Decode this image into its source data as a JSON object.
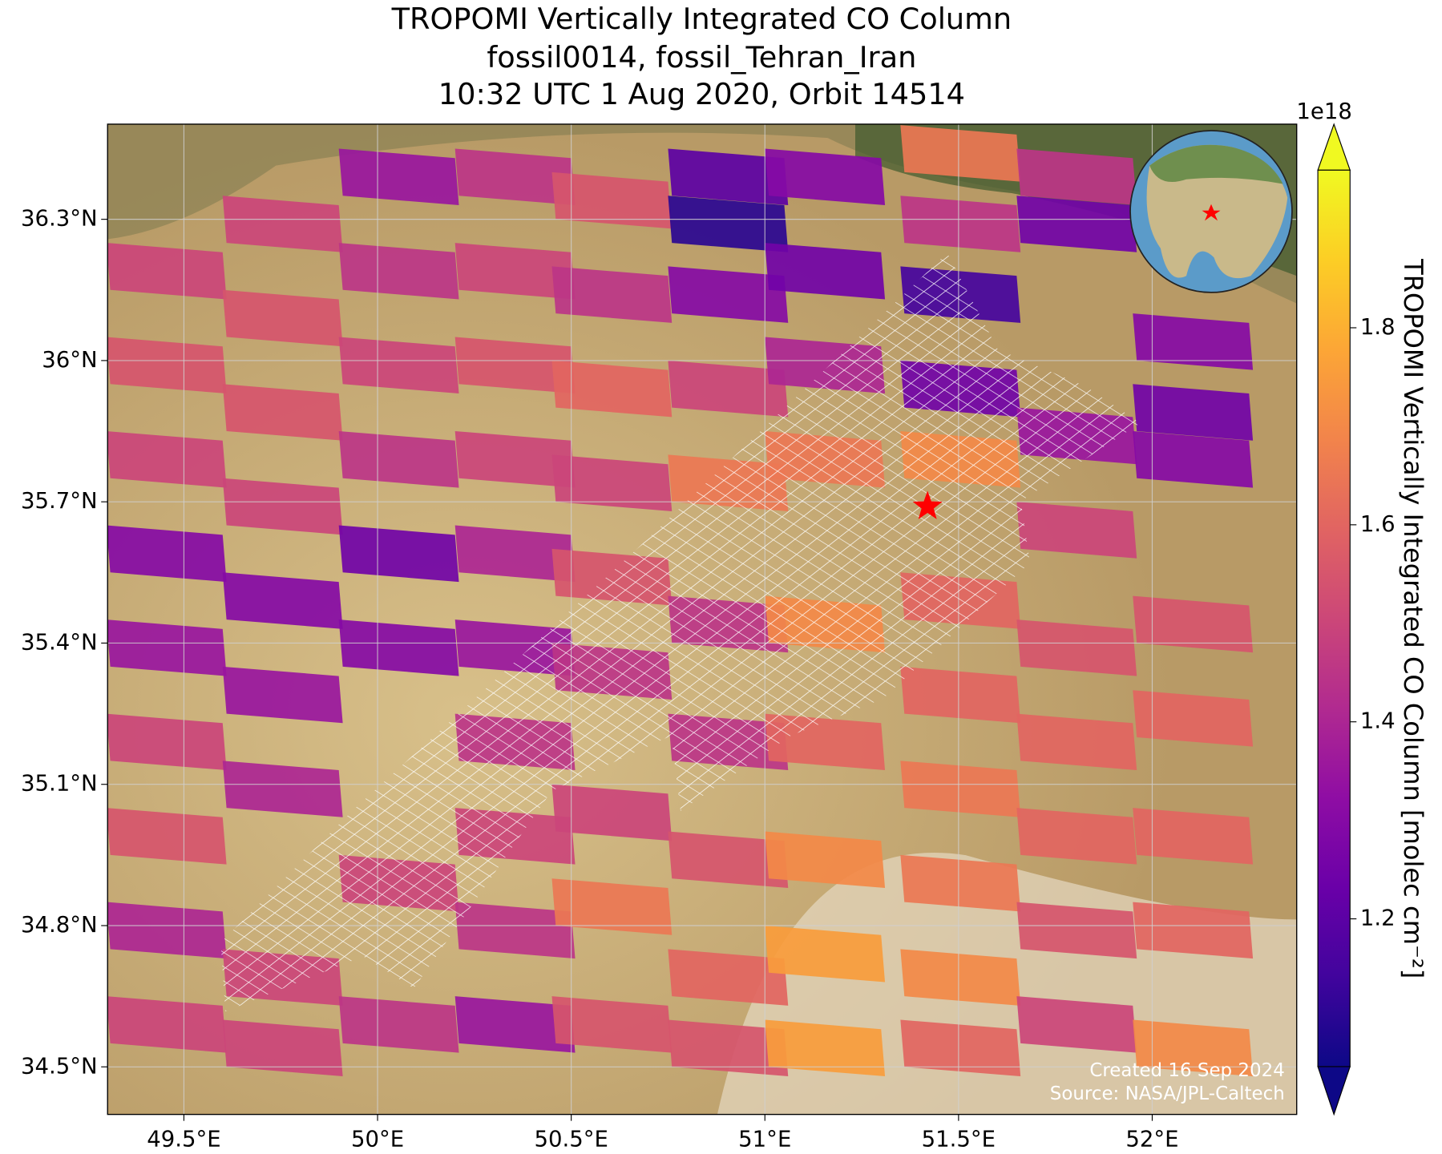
{
  "chart_data": {
    "type": "map",
    "title": [
      "TROPOMI Vertically Integrated CO Column",
      "fossil0014, fossil_Tehran_Iran",
      "10:32 UTC 1 Aug 2020, Orbit 14514"
    ],
    "xlim": [
      49.303,
      52.373
    ],
    "ylim": [
      34.399,
      36.502
    ],
    "xticks": [
      {
        "value": 49.5,
        "label": "49.5°E"
      },
      {
        "value": 50,
        "label": "50°E"
      },
      {
        "value": 50.5,
        "label": "50.5°E"
      },
      {
        "value": 51,
        "label": "51°E"
      },
      {
        "value": 51.5,
        "label": "51.5°E"
      },
      {
        "value": 52,
        "label": "52°E"
      }
    ],
    "yticks": [
      {
        "value": 34.5,
        "label": "34.5°N"
      },
      {
        "value": 34.8,
        "label": "34.8°N"
      },
      {
        "value": 35.1,
        "label": "35.1°N"
      },
      {
        "value": 35.4,
        "label": "35.4°N"
      },
      {
        "value": 35.7,
        "label": "35.7°N"
      },
      {
        "value": 36,
        "label": "36°N"
      },
      {
        "value": 36.3,
        "label": "36.3°N"
      }
    ],
    "grid": true,
    "colormap": "plasma",
    "colorbar": {
      "label": "TROPOMI Vertically Integrated CO Column [molec cm⁻²]",
      "offset_label": "1e18",
      "clim": [
        1.05,
        1.96
      ],
      "ticks": [
        1.2,
        1.4,
        1.6,
        1.8
      ]
    },
    "pixels": [
      [
        49.45,
        36.2,
        1.5
      ],
      [
        49.45,
        36.0,
        1.55
      ],
      [
        49.45,
        35.8,
        1.5
      ],
      [
        49.45,
        35.6,
        1.3
      ],
      [
        49.45,
        35.4,
        1.35
      ],
      [
        49.45,
        35.2,
        1.5
      ],
      [
        49.45,
        35.0,
        1.55
      ],
      [
        49.45,
        34.8,
        1.4
      ],
      [
        49.45,
        34.6,
        1.5
      ],
      [
        49.75,
        36.3,
        1.5
      ],
      [
        49.75,
        36.1,
        1.55
      ],
      [
        49.75,
        35.9,
        1.55
      ],
      [
        49.75,
        35.7,
        1.5
      ],
      [
        49.75,
        35.5,
        1.3
      ],
      [
        49.75,
        35.3,
        1.35
      ],
      [
        49.75,
        35.1,
        1.4
      ],
      [
        49.75,
        34.7,
        1.5
      ],
      [
        49.75,
        34.55,
        1.5
      ],
      [
        50.05,
        36.4,
        1.35
      ],
      [
        50.05,
        36.2,
        1.45
      ],
      [
        50.05,
        36.0,
        1.5
      ],
      [
        50.05,
        35.8,
        1.45
      ],
      [
        50.05,
        35.6,
        1.25
      ],
      [
        50.05,
        35.4,
        1.3
      ],
      [
        50.05,
        34.9,
        1.5
      ],
      [
        50.05,
        34.6,
        1.45
      ],
      [
        50.35,
        36.4,
        1.45
      ],
      [
        50.35,
        36.2,
        1.5
      ],
      [
        50.35,
        36.0,
        1.55
      ],
      [
        50.35,
        35.8,
        1.5
      ],
      [
        50.35,
        35.6,
        1.4
      ],
      [
        50.35,
        35.4,
        1.35
      ],
      [
        50.35,
        35.2,
        1.45
      ],
      [
        50.35,
        35.0,
        1.5
      ],
      [
        50.35,
        34.8,
        1.45
      ],
      [
        50.35,
        34.6,
        1.35
      ],
      [
        50.6,
        36.35,
        1.55
      ],
      [
        50.6,
        36.15,
        1.45
      ],
      [
        50.6,
        35.95,
        1.6
      ],
      [
        50.6,
        35.75,
        1.5
      ],
      [
        50.6,
        35.55,
        1.55
      ],
      [
        50.6,
        35.35,
        1.45
      ],
      [
        50.6,
        35.05,
        1.5
      ],
      [
        50.6,
        34.85,
        1.65
      ],
      [
        50.6,
        34.6,
        1.55
      ],
      [
        50.9,
        36.4,
        1.2
      ],
      [
        50.9,
        36.3,
        1.1
      ],
      [
        50.9,
        36.15,
        1.3
      ],
      [
        50.9,
        35.95,
        1.5
      ],
      [
        50.9,
        35.75,
        1.65
      ],
      [
        50.9,
        35.45,
        1.45
      ],
      [
        50.9,
        35.2,
        1.45
      ],
      [
        50.9,
        34.95,
        1.55
      ],
      [
        50.9,
        34.7,
        1.6
      ],
      [
        50.9,
        34.55,
        1.55
      ],
      [
        51.15,
        36.4,
        1.3
      ],
      [
        51.15,
        36.2,
        1.25
      ],
      [
        51.15,
        36.0,
        1.4
      ],
      [
        51.15,
        35.8,
        1.65
      ],
      [
        51.15,
        35.45,
        1.7
      ],
      [
        51.15,
        35.2,
        1.6
      ],
      [
        51.15,
        34.95,
        1.7
      ],
      [
        51.15,
        34.75,
        1.75
      ],
      [
        51.15,
        34.55,
        1.75
      ],
      [
        51.5,
        36.45,
        1.65
      ],
      [
        51.5,
        36.3,
        1.45
      ],
      [
        51.5,
        36.15,
        1.15
      ],
      [
        51.5,
        35.95,
        1.25
      ],
      [
        51.5,
        35.8,
        1.7
      ],
      [
        51.5,
        35.5,
        1.6
      ],
      [
        51.5,
        35.3,
        1.6
      ],
      [
        51.5,
        35.1,
        1.65
      ],
      [
        51.5,
        34.9,
        1.65
      ],
      [
        51.5,
        34.7,
        1.7
      ],
      [
        51.5,
        34.55,
        1.6
      ],
      [
        51.8,
        36.4,
        1.45
      ],
      [
        51.8,
        36.3,
        1.25
      ],
      [
        51.8,
        35.85,
        1.35
      ],
      [
        51.8,
        35.65,
        1.5
      ],
      [
        51.8,
        35.4,
        1.55
      ],
      [
        51.8,
        35.2,
        1.6
      ],
      [
        51.8,
        35.0,
        1.6
      ],
      [
        51.8,
        34.8,
        1.55
      ],
      [
        51.8,
        34.6,
        1.5
      ],
      [
        52.1,
        36.05,
        1.3
      ],
      [
        52.1,
        35.9,
        1.25
      ],
      [
        52.1,
        35.8,
        1.3
      ],
      [
        52.1,
        35.45,
        1.55
      ],
      [
        52.1,
        35.25,
        1.6
      ],
      [
        52.1,
        35.0,
        1.6
      ],
      [
        52.1,
        34.8,
        1.6
      ],
      [
        52.1,
        34.55,
        1.7
      ]
    ],
    "site": {
      "lon": 51.42,
      "lat": 35.69
    },
    "annotations": [
      "Created 16 Sep 2024",
      "Source: NASA/JPL-Caltech"
    ]
  }
}
